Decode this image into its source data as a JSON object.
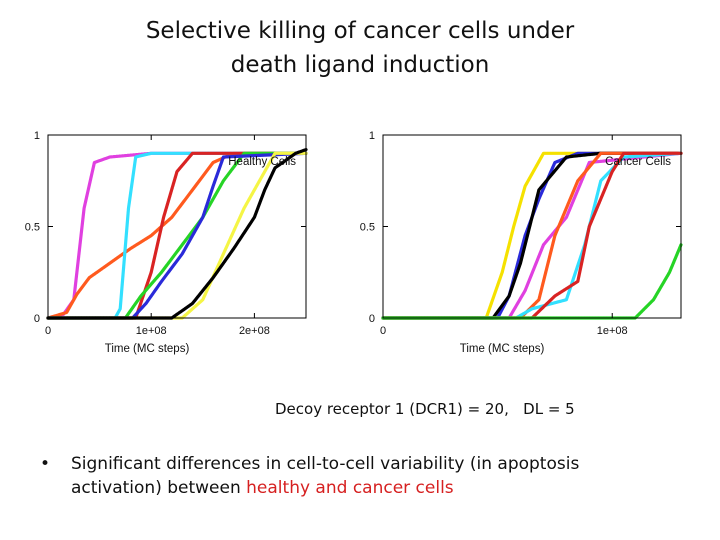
{
  "slide": {
    "title_line1": "Selective killing of cancer cells under",
    "title_line2": "death ligand induction",
    "caption": "Decoy receptor 1 (DCR1) = 20,   DL = 5",
    "bullet_mark": "•",
    "bullet_text_plain": "Significant differences in cell-to-cell variability (in apoptosis activation) between ",
    "bullet_text_highlight": "healthy and cancer cells",
    "highlight_color": "#d62020"
  },
  "chart_data": [
    {
      "type": "line",
      "title": "Healthy Cells",
      "xlabel": "Time (MC steps)",
      "ylabel": "",
      "xlim": [
        0,
        250000000
      ],
      "ylim": [
        0,
        1
      ],
      "x_ticks": [
        0,
        100000000,
        200000000
      ],
      "x_tick_labels": [
        "0",
        "1e+08",
        "2e+08"
      ],
      "y_ticks": [
        0,
        0.5,
        1
      ],
      "y_tick_labels": [
        "0",
        "0.5",
        "1"
      ],
      "grid": false,
      "series": [
        {
          "color": "#e040e0",
          "x": [
            0,
            15000000,
            25000000,
            35000000,
            45000000,
            60000000,
            100000000,
            150000000,
            250000000
          ],
          "y": [
            0,
            0.02,
            0.1,
            0.6,
            0.85,
            0.88,
            0.9,
            0.9,
            0.9
          ]
        },
        {
          "color": "#ff5a1e",
          "x": [
            0,
            18000000,
            28000000,
            40000000,
            60000000,
            80000000,
            100000000,
            120000000,
            140000000,
            160000000,
            180000000,
            250000000
          ],
          "y": [
            0,
            0.03,
            0.13,
            0.22,
            0.3,
            0.38,
            0.45,
            0.55,
            0.7,
            0.85,
            0.9,
            0.9
          ]
        },
        {
          "color": "#33e0ff",
          "x": [
            0,
            65000000,
            70000000,
            78000000,
            85000000,
            100000000,
            250000000
          ],
          "y": [
            0,
            0,
            0.05,
            0.6,
            0.88,
            0.9,
            0.9
          ]
        },
        {
          "color": "#d92323",
          "x": [
            0,
            85000000,
            100000000,
            112000000,
            125000000,
            140000000,
            250000000
          ],
          "y": [
            0,
            0,
            0.25,
            0.55,
            0.8,
            0.9,
            0.9
          ]
        },
        {
          "color": "#26d426",
          "x": [
            0,
            75000000,
            90000000,
            110000000,
            130000000,
            150000000,
            170000000,
            190000000,
            250000000
          ],
          "y": [
            0,
            0,
            0.12,
            0.25,
            0.4,
            0.55,
            0.75,
            0.9,
            0.9
          ]
        },
        {
          "color": "#2a2ad9",
          "x": [
            0,
            82000000,
            95000000,
            110000000,
            130000000,
            150000000,
            160000000,
            170000000,
            250000000
          ],
          "y": [
            0,
            0,
            0.08,
            0.2,
            0.35,
            0.55,
            0.72,
            0.88,
            0.9
          ]
        },
        {
          "color": "#f5f545",
          "x": [
            0,
            130000000,
            150000000,
            170000000,
            190000000,
            210000000,
            220000000,
            250000000
          ],
          "y": [
            0,
            0,
            0.1,
            0.35,
            0.6,
            0.8,
            0.9,
            0.9
          ]
        },
        {
          "color": "#000000",
          "x": [
            0,
            120000000,
            140000000,
            160000000,
            180000000,
            200000000,
            210000000,
            220000000,
            240000000,
            250000000
          ],
          "y": [
            0,
            0,
            0.08,
            0.22,
            0.38,
            0.55,
            0.7,
            0.82,
            0.9,
            0.92
          ]
        }
      ]
    },
    {
      "type": "line",
      "title": "Cancer Cells",
      "xlabel": "Time (MC steps)",
      "ylabel": "",
      "xlim": [
        0,
        130000000
      ],
      "ylim": [
        0,
        1
      ],
      "x_ticks": [
        0,
        100000000
      ],
      "x_tick_labels": [
        "0",
        "1e+08"
      ],
      "y_ticks": [
        0,
        0.5,
        1
      ],
      "y_tick_labels": [
        "0",
        "0.5",
        "1"
      ],
      "grid": false,
      "series": [
        {
          "color": "#f5e100",
          "x": [
            0,
            45000000,
            52000000,
            57000000,
            62000000,
            70000000,
            130000000
          ],
          "y": [
            0,
            0,
            0.25,
            0.5,
            0.72,
            0.9,
            0.9
          ]
        },
        {
          "color": "#2a2ad9",
          "x": [
            0,
            50000000,
            55000000,
            62000000,
            68000000,
            75000000,
            85000000,
            130000000
          ],
          "y": [
            0,
            0,
            0.12,
            0.45,
            0.65,
            0.85,
            0.9,
            0.9
          ]
        },
        {
          "color": "#000000",
          "x": [
            0,
            48000000,
            55000000,
            60000000,
            68000000,
            80000000,
            95000000,
            115000000,
            130000000
          ],
          "y": [
            0,
            0,
            0.12,
            0.3,
            0.7,
            0.88,
            0.9,
            0.9,
            0.9
          ]
        },
        {
          "color": "#e040e0",
          "x": [
            0,
            55000000,
            62000000,
            70000000,
            80000000,
            90000000,
            130000000
          ],
          "y": [
            0,
            0,
            0.15,
            0.4,
            0.55,
            0.85,
            0.9
          ]
        },
        {
          "color": "#ff5a1e",
          "x": [
            0,
            60000000,
            68000000,
            75000000,
            85000000,
            95000000,
            130000000
          ],
          "y": [
            0,
            0,
            0.1,
            0.45,
            0.75,
            0.9,
            0.9
          ]
        },
        {
          "color": "#33e0ff",
          "x": [
            0,
            58000000,
            65000000,
            80000000,
            88000000,
            95000000,
            105000000,
            130000000
          ],
          "y": [
            0,
            0,
            0.05,
            0.1,
            0.4,
            0.75,
            0.88,
            0.9
          ]
        },
        {
          "color": "#d92323",
          "x": [
            0,
            65000000,
            75000000,
            85000000,
            90000000,
            100000000,
            105000000,
            130000000
          ],
          "y": [
            0,
            0,
            0.12,
            0.2,
            0.5,
            0.8,
            0.9,
            0.9
          ]
        },
        {
          "color": "#26d426",
          "x": [
            0,
            110000000,
            118000000,
            125000000,
            130000000
          ],
          "y": [
            0,
            0,
            0.1,
            0.25,
            0.4
          ]
        }
      ]
    }
  ]
}
